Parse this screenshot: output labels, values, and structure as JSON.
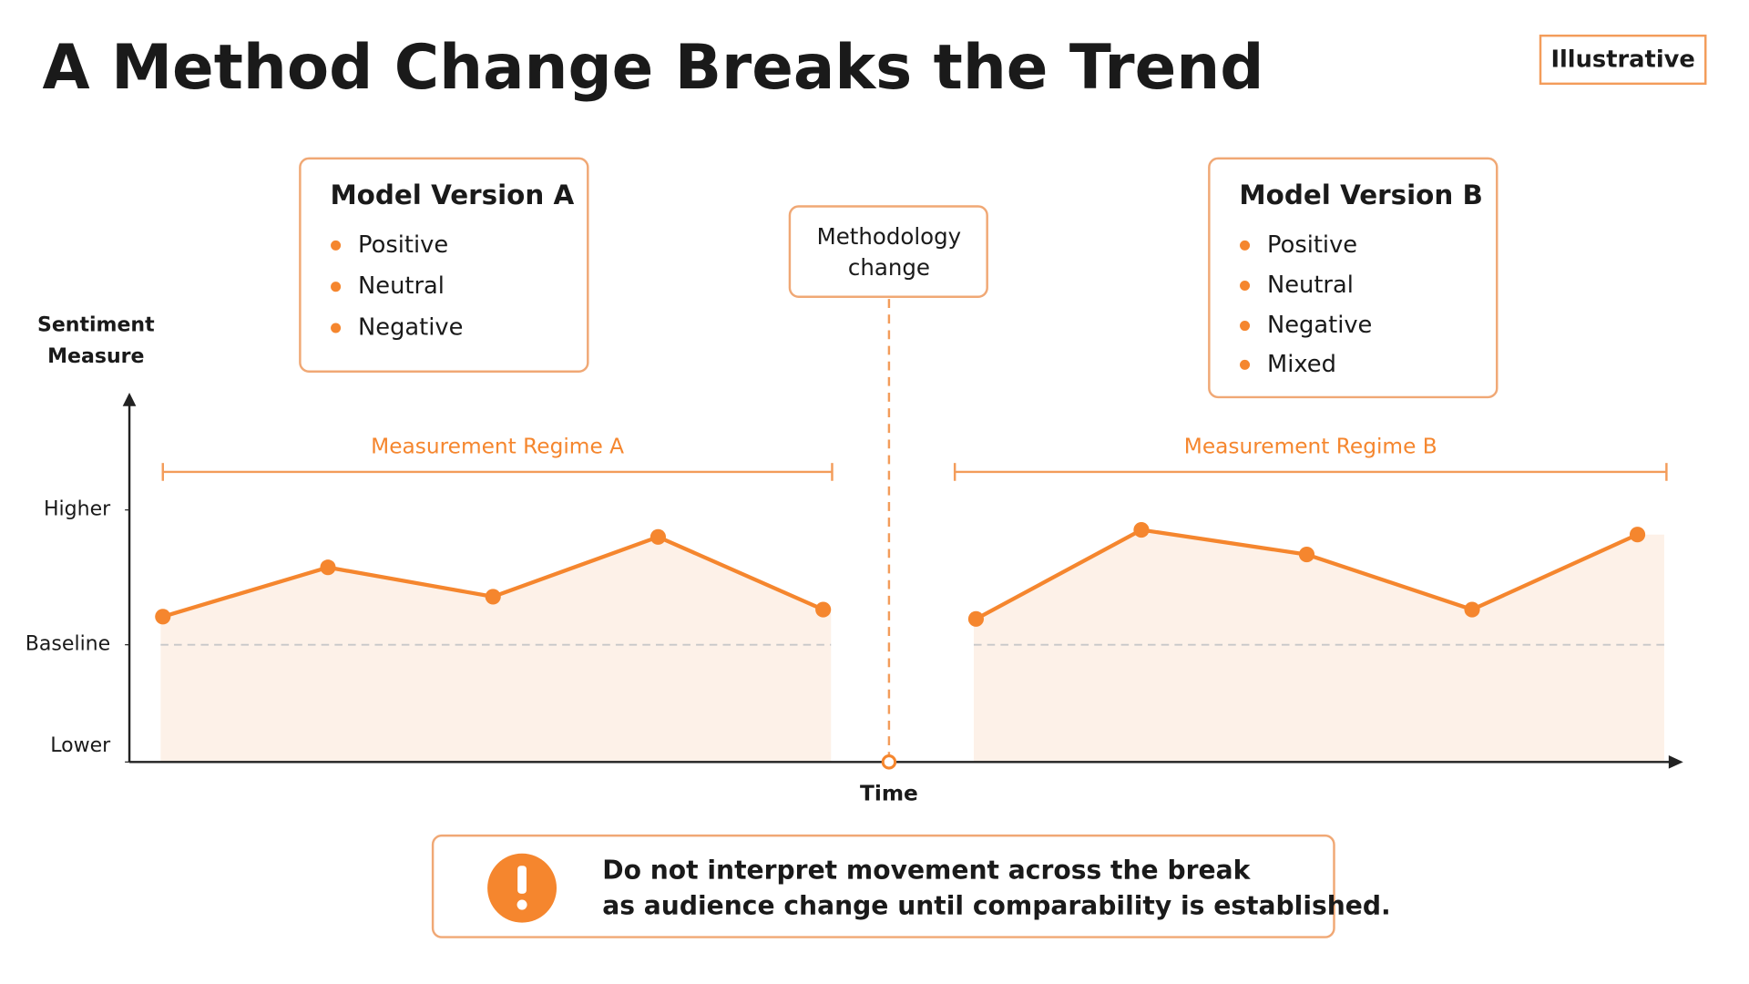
{
  "title": "A Method Change Breaks the Trend",
  "badge": "Illustrative",
  "model_a": {
    "title": "Model Version A",
    "items": [
      "Positive",
      "Neutral",
      "Negative"
    ]
  },
  "model_b": {
    "title": "Model Version B",
    "items": [
      "Positive",
      "Neutral",
      "Negative",
      "Mixed"
    ]
  },
  "break_label": [
    "Methodology",
    "change"
  ],
  "warning": [
    "Do not interpret movement across the break",
    "as audience change until comparability is established."
  ],
  "chart_data": {
    "type": "line",
    "y_label": [
      "Sentiment",
      "Measure"
    ],
    "x_label": "Time",
    "ylim": [
      0,
      3.15
    ],
    "yticks": [
      {
        "value": 0,
        "label": "Lower"
      },
      {
        "value": 1,
        "label": "Baseline"
      },
      {
        "value": 2.15,
        "label": "Higher"
      }
    ],
    "series": [
      {
        "name": "Measurement Regime A",
        "color": "#f5862e",
        "values": [
          1.24,
          1.66,
          1.41,
          1.92,
          1.3
        ]
      },
      {
        "name": "Measurement Regime B",
        "color": "#f5862e",
        "values": [
          1.22,
          1.98,
          1.77,
          1.3,
          1.94
        ]
      }
    ]
  }
}
